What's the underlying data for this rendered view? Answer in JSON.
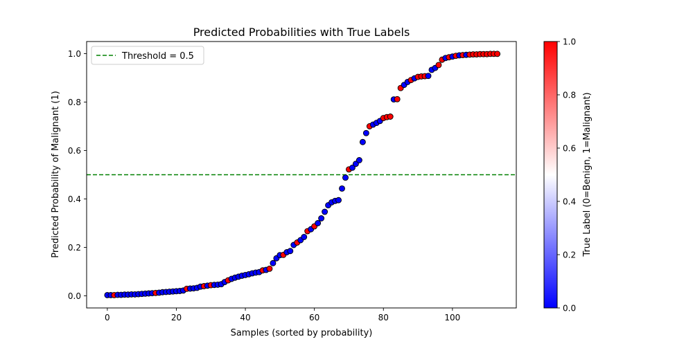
{
  "chart_data": {
    "type": "scatter",
    "title": "Predicted Probabilities with True Labels",
    "xlabel": "Samples (sorted by probability)",
    "ylabel": "Predicted Probability of Malignant (1)",
    "xlim": [
      -6,
      118.5
    ],
    "ylim": [
      -0.05,
      1.05
    ],
    "xticks": [
      0,
      20,
      40,
      60,
      80,
      100
    ],
    "yticks": [
      0.0,
      0.2,
      0.4,
      0.6,
      0.8,
      1.0
    ],
    "grid": false,
    "legend": {
      "placement": "top-left",
      "entries": [
        {
          "label": "Threshold = 0.5",
          "color": "#008000",
          "style": "dashed"
        }
      ]
    },
    "threshold": {
      "value": 0.5,
      "label": "Threshold = 0.5",
      "color": "#008000"
    },
    "marker_edge_color": "#000000",
    "colormap": {
      "name": "bwr",
      "low_color": "#0000ff",
      "mid_color": "#ffffff",
      "high_color": "#ff0000"
    },
    "colorbar": {
      "label": "True Label (0=Benign, 1=Malignant)",
      "range": [
        0.0,
        1.0
      ],
      "ticks": [
        0.0,
        0.2,
        0.4,
        0.6,
        0.8,
        1.0
      ]
    },
    "x": [
      0,
      1,
      2,
      3,
      4,
      5,
      6,
      7,
      8,
      9,
      10,
      11,
      12,
      13,
      14,
      15,
      16,
      17,
      18,
      19,
      20,
      21,
      22,
      23,
      24,
      25,
      26,
      27,
      28,
      29,
      30,
      31,
      32,
      33,
      34,
      35,
      36,
      37,
      38,
      39,
      40,
      41,
      42,
      43,
      44,
      45,
      46,
      47,
      48,
      49,
      50,
      51,
      52,
      53,
      54,
      55,
      56,
      57,
      58,
      59,
      60,
      61,
      62,
      63,
      64,
      65,
      66,
      67,
      68,
      69,
      70,
      71,
      72,
      73,
      74,
      75,
      76,
      77,
      78,
      79,
      80,
      81,
      82,
      83,
      84,
      85,
      86,
      87,
      88,
      89,
      90,
      91,
      92,
      93,
      94,
      95,
      96,
      97,
      98,
      99,
      100,
      101,
      102,
      103,
      104,
      105,
      106,
      107,
      108,
      109,
      110,
      111,
      112,
      113
    ],
    "y": [
      0.003,
      0.003,
      0.003,
      0.004,
      0.004,
      0.005,
      0.005,
      0.006,
      0.006,
      0.007,
      0.008,
      0.009,
      0.01,
      0.011,
      0.012,
      0.013,
      0.015,
      0.016,
      0.017,
      0.018,
      0.019,
      0.02,
      0.022,
      0.029,
      0.03,
      0.031,
      0.033,
      0.038,
      0.04,
      0.042,
      0.044,
      0.045,
      0.046,
      0.048,
      0.057,
      0.064,
      0.07,
      0.075,
      0.079,
      0.083,
      0.086,
      0.089,
      0.093,
      0.096,
      0.098,
      0.105,
      0.107,
      0.112,
      0.135,
      0.155,
      0.168,
      0.169,
      0.18,
      0.185,
      0.21,
      0.22,
      0.23,
      0.243,
      0.267,
      0.275,
      0.287,
      0.3,
      0.32,
      0.347,
      0.374,
      0.386,
      0.392,
      0.395,
      0.443,
      0.488,
      0.522,
      0.529,
      0.545,
      0.56,
      0.635,
      0.672,
      0.7,
      0.707,
      0.714,
      0.722,
      0.734,
      0.738,
      0.74,
      0.811,
      0.812,
      0.858,
      0.871,
      0.883,
      0.891,
      0.898,
      0.904,
      0.906,
      0.907,
      0.908,
      0.933,
      0.941,
      0.953,
      0.975,
      0.982,
      0.985,
      0.988,
      0.991,
      0.993,
      0.994,
      0.995,
      0.996,
      0.997,
      0.997,
      0.998,
      0.998,
      0.998,
      0.999,
      0.999,
      0.999
    ],
    "labels": [
      0,
      0,
      1,
      0,
      0,
      0,
      0,
      0,
      0,
      0,
      0,
      0,
      0,
      0,
      1,
      0,
      0,
      0,
      0,
      0,
      0,
      0,
      0,
      1,
      0,
      0,
      0,
      0,
      1,
      0,
      1,
      0,
      0,
      0,
      0,
      1,
      0,
      0,
      0,
      0,
      0,
      0,
      0,
      0,
      0,
      1,
      0,
      1,
      0,
      0,
      0,
      1,
      0,
      0,
      0,
      1,
      0,
      0,
      1,
      0,
      1,
      0,
      0,
      0,
      0,
      0,
      0,
      0,
      0,
      0,
      1,
      0,
      0,
      0,
      0,
      0,
      1,
      0,
      0,
      0,
      1,
      1,
      1,
      0,
      1,
      1,
      0,
      0,
      1,
      0,
      1,
      1,
      1,
      0,
      0,
      0,
      1,
      1,
      0,
      1,
      0,
      1,
      0,
      1,
      0,
      1,
      1,
      1,
      1,
      1,
      1,
      1,
      1,
      1
    ]
  }
}
